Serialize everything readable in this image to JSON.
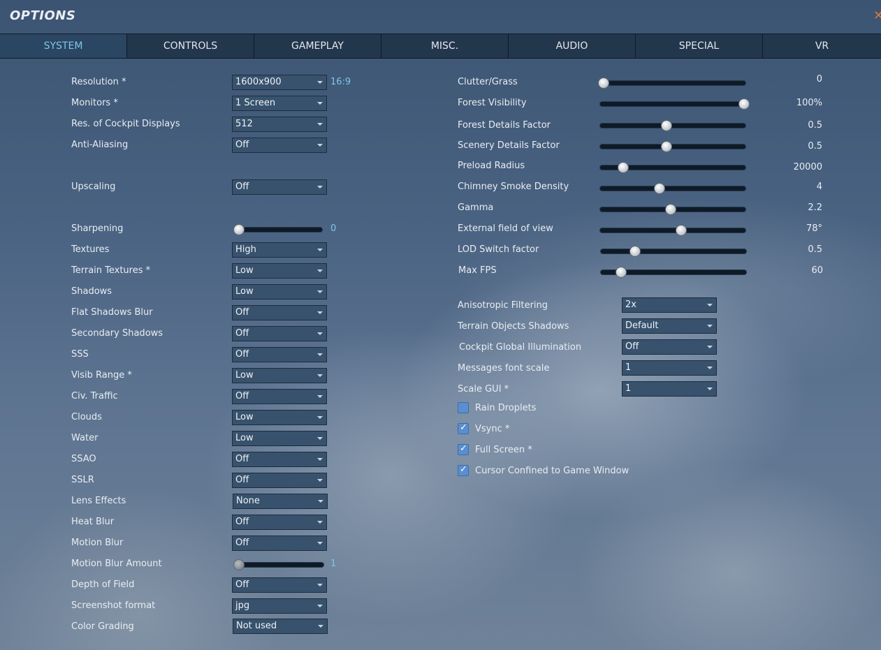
{
  "window": {
    "title": "OPTIONS",
    "close_glyph": "✕"
  },
  "tabs": [
    {
      "label": "SYSTEM",
      "active": true
    },
    {
      "label": "CONTROLS"
    },
    {
      "label": "GAMEPLAY"
    },
    {
      "label": "MISC."
    },
    {
      "label": "AUDIO"
    },
    {
      "label": "SPECIAL"
    },
    {
      "label": "VR"
    }
  ],
  "left": {
    "resolution": {
      "label": "Resolution *",
      "value": "1600x900",
      "ratio": "16:9"
    },
    "monitors": {
      "label": "Monitors *",
      "value": "1 Screen"
    },
    "cockpit_displays": {
      "label": "Res. of Cockpit Displays",
      "value": "512"
    },
    "anti_aliasing": {
      "label": "Anti-Aliasing",
      "value": "Off"
    },
    "upscaling": {
      "label": "Upscaling",
      "value": "Off"
    },
    "sharpening": {
      "label": "Sharpening",
      "value": "0",
      "fraction": 0.0
    },
    "textures": {
      "label": "Textures",
      "value": "High"
    },
    "terrain_textures": {
      "label": "Terrain Textures *",
      "value": "Low"
    },
    "shadows": {
      "label": "Shadows",
      "value": "Low"
    },
    "flat_shadows_blur": {
      "label": "Flat Shadows Blur",
      "value": "Off"
    },
    "secondary_shadows": {
      "label": "Secondary Shadows",
      "value": "Off"
    },
    "sss": {
      "label": "SSS",
      "value": "Off"
    },
    "visib_range": {
      "label": "Visib Range *",
      "value": "Low"
    },
    "civ_traffic": {
      "label": "Civ. Traffic",
      "value": "Off"
    },
    "clouds": {
      "label": "Clouds",
      "value": "Low"
    },
    "water": {
      "label": "Water",
      "value": "Low"
    },
    "ssao": {
      "label": "SSAO",
      "value": "Off"
    },
    "sslr": {
      "label": "SSLR",
      "value": "Off"
    },
    "lens_effects": {
      "label": "Lens Effects",
      "value": "None"
    },
    "heat_blur": {
      "label": "Heat Blur",
      "value": "Off"
    },
    "motion_blur": {
      "label": "Motion Blur",
      "value": "Off"
    },
    "motion_blur_amount": {
      "label": "Motion Blur Amount",
      "value": "1",
      "fraction": 0.0
    },
    "depth_of_field": {
      "label": "Depth of Field",
      "value": "Off"
    },
    "screenshot_format": {
      "label": "Screenshot format",
      "value": "jpg"
    },
    "color_grading": {
      "label": "Color Grading",
      "value": "Not used"
    }
  },
  "right": {
    "clutter_grass": {
      "label": "Clutter/Grass",
      "value": "0",
      "fraction": 0.0
    },
    "forest_visibility": {
      "label": "Forest Visibility",
      "value": "100%",
      "fraction": 1.0
    },
    "forest_details": {
      "label": "Forest Details Factor",
      "value": "0.5",
      "fraction": 0.45
    },
    "scenery_details": {
      "label": "Scenery Details Factor",
      "value": "0.5",
      "fraction": 0.45
    },
    "preload_radius": {
      "label": "Preload Radius",
      "value": "20000",
      "fraction": 0.14
    },
    "chimney_smoke": {
      "label": "Chimney Smoke Density",
      "value": "4",
      "fraction": 0.4
    },
    "gamma": {
      "label": "Gamma",
      "value": "2.2",
      "fraction": 0.48
    },
    "external_fov": {
      "label": "External field of view",
      "value": "78°",
      "fraction": 0.55
    },
    "lod_switch": {
      "label": "LOD Switch factor",
      "value": "0.5",
      "fraction": 0.22
    },
    "max_fps": {
      "label": "Max FPS",
      "value": "60",
      "fraction": 0.12
    },
    "anisotropic": {
      "label": "Anisotropic Filtering",
      "value": "2x"
    },
    "terrain_obj_shadows": {
      "label": "Terrain Objects Shadows",
      "value": "Default"
    },
    "cockpit_gi": {
      "label": "Cockpit Global Illumination",
      "value": "Off"
    },
    "messages_font_scale": {
      "label": "Messages font scale",
      "value": "1"
    },
    "scale_gui": {
      "label": "Scale GUI *",
      "value": "1"
    },
    "rain_droplets": {
      "label": "Rain Droplets",
      "checked": false
    },
    "vsync": {
      "label": "Vsync *",
      "checked": true
    },
    "full_screen": {
      "label": "Full Screen *",
      "checked": true
    },
    "cursor_confined": {
      "label": "Cursor Confined to Game Window",
      "checked": true
    }
  }
}
